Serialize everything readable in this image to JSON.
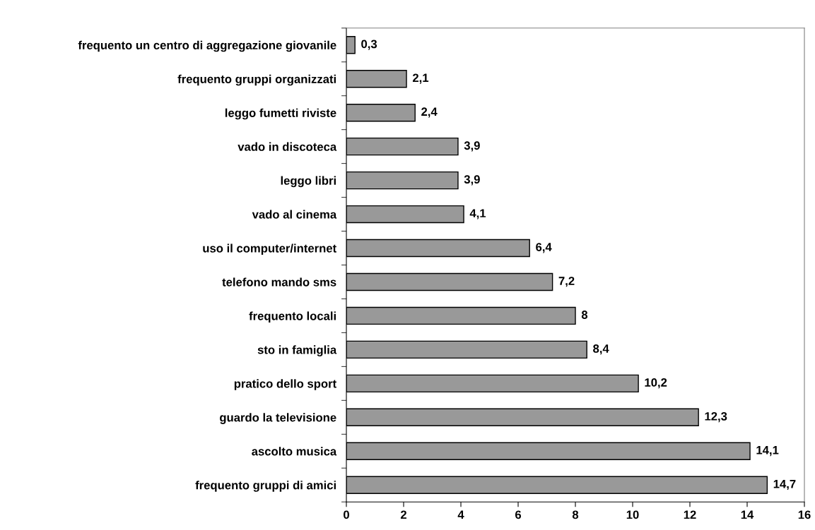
{
  "chart_data": {
    "type": "bar",
    "orientation": "horizontal",
    "categories": [
      "frequento un centro di aggregazione giovanile",
      "frequento gruppi organizzati",
      "leggo fumetti riviste",
      "vado in discoteca",
      "leggo libri",
      "vado al cinema",
      "uso il computer/internet",
      "telefono mando sms",
      "frequento locali",
      "sto in famiglia",
      "pratico dello sport",
      "guardo la televisione",
      "ascolto musica",
      "frequento gruppi di amici"
    ],
    "values": [
      0.3,
      2.1,
      2.4,
      3.9,
      3.9,
      4.1,
      6.4,
      7.2,
      8,
      8.4,
      10.2,
      12.3,
      14.1,
      14.7
    ],
    "value_labels": [
      "0,3",
      "2,1",
      "2,4",
      "3,9",
      "3,9",
      "4,1",
      "6,4",
      "7,2",
      "8",
      "8,4",
      "10,2",
      "12,3",
      "14,1",
      "14,7"
    ],
    "color": "#999999",
    "xlim": [
      0,
      16
    ],
    "xticks": [
      0,
      2,
      4,
      6,
      8,
      10,
      12,
      14,
      16
    ],
    "grid": false,
    "legend": false
  }
}
